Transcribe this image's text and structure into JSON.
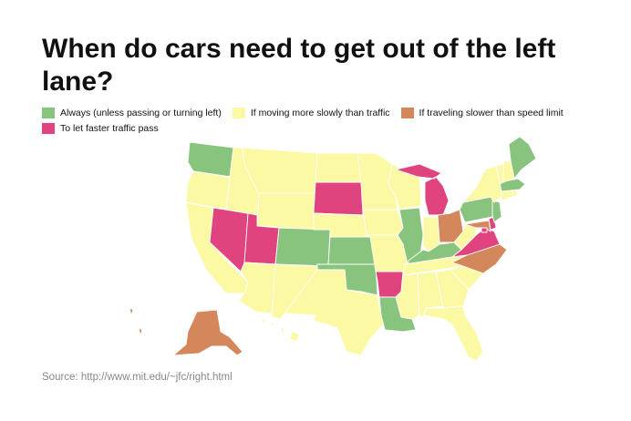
{
  "title": "When do cars need to get out of the left lane?",
  "legend": [
    {
      "key": "always",
      "label": "Always (unless passing or turning left)",
      "color": "#89c47f"
    },
    {
      "key": "slowly",
      "label": "If moving more slowly than traffic",
      "color": "#fcf9a4"
    },
    {
      "key": "speed",
      "label": "If traveling slower than speed limit",
      "color": "#d5875c"
    },
    {
      "key": "faster",
      "label": "To let faster traffic pass",
      "color": "#e0447f"
    }
  ],
  "states": {
    "WA": "always",
    "OR": "slowly",
    "CA": "slowly",
    "NV": "faster",
    "ID": "slowly",
    "MT": "slowly",
    "WY": "slowly",
    "UT": "faster",
    "AZ": "slowly",
    "CO": "always",
    "NM": "slowly",
    "ND": "slowly",
    "SD": "faster",
    "NE": "slowly",
    "KS": "always",
    "OK": "always",
    "TX": "slowly",
    "MN": "slowly",
    "IA": "slowly",
    "MO": "slowly",
    "AR": "faster",
    "LA": "always",
    "WI": "slowly",
    "IL": "always",
    "MI": "faster",
    "IN": "slowly",
    "OH": "speed",
    "KY": "always",
    "TN": "slowly",
    "MS": "slowly",
    "AL": "slowly",
    "GA": "slowly",
    "FL": "slowly",
    "SC": "slowly",
    "NC": "speed",
    "VA": "faster",
    "WV": "slowly",
    "MD": "speed",
    "DE": "faster",
    "DC": "faster",
    "PA": "always",
    "NJ": "always",
    "NY": "slowly",
    "CT": "slowly",
    "RI": "slowly",
    "MA": "always",
    "VT": "slowly",
    "NH": "slowly",
    "ME": "always",
    "AK": "speed",
    "HI": "slowly"
  },
  "source": "Source: http://www.mit.edu/~jfc/right.html"
}
